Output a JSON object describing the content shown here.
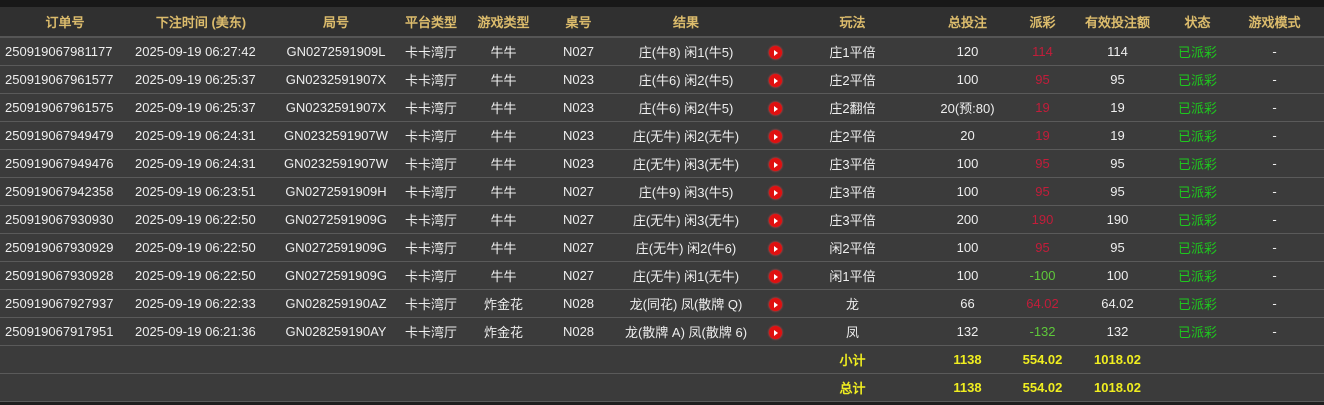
{
  "headers": [
    "订单号",
    "下注时间 (美东)",
    "局号",
    "平台类型",
    "游戏类型",
    "桌号",
    "结果",
    "",
    "玩法",
    "总投注",
    "派彩",
    "有效投注额",
    "状态",
    "游戏模式"
  ],
  "rows": [
    [
      "250919067981177",
      "2025-09-19 06:27:42",
      "GN0272591909L",
      "卡卡湾厅",
      "牛牛",
      "N027",
      "庄(牛8) 闲1(牛5)",
      "庄1平倍",
      "120",
      "114",
      "114",
      "已派彩",
      "-"
    ],
    [
      "250919067961577",
      "2025-09-19 06:25:37",
      "GN0232591907X",
      "卡卡湾厅",
      "牛牛",
      "N023",
      "庄(牛6) 闲2(牛5)",
      "庄2平倍",
      "100",
      "95",
      "95",
      "已派彩",
      "-"
    ],
    [
      "250919067961575",
      "2025-09-19 06:25:37",
      "GN0232591907X",
      "卡卡湾厅",
      "牛牛",
      "N023",
      "庄(牛6) 闲2(牛5)",
      "庄2翻倍",
      "20(预:80)",
      "19",
      "19",
      "已派彩",
      "-"
    ],
    [
      "250919067949479",
      "2025-09-19 06:24:31",
      "GN0232591907W",
      "卡卡湾厅",
      "牛牛",
      "N023",
      "庄(无牛) 闲2(无牛)",
      "庄2平倍",
      "20",
      "19",
      "19",
      "已派彩",
      "-"
    ],
    [
      "250919067949476",
      "2025-09-19 06:24:31",
      "GN0232591907W",
      "卡卡湾厅",
      "牛牛",
      "N023",
      "庄(无牛) 闲3(无牛)",
      "庄3平倍",
      "100",
      "95",
      "95",
      "已派彩",
      "-"
    ],
    [
      "250919067942358",
      "2025-09-19 06:23:51",
      "GN0272591909H",
      "卡卡湾厅",
      "牛牛",
      "N027",
      "庄(牛9) 闲3(牛5)",
      "庄3平倍",
      "100",
      "95",
      "95",
      "已派彩",
      "-"
    ],
    [
      "250919067930930",
      "2025-09-19 06:22:50",
      "GN0272591909G",
      "卡卡湾厅",
      "牛牛",
      "N027",
      "庄(无牛) 闲3(无牛)",
      "庄3平倍",
      "200",
      "190",
      "190",
      "已派彩",
      "-"
    ],
    [
      "250919067930929",
      "2025-09-19 06:22:50",
      "GN0272591909G",
      "卡卡湾厅",
      "牛牛",
      "N027",
      "庄(无牛) 闲2(牛6)",
      "闲2平倍",
      "100",
      "95",
      "95",
      "已派彩",
      "-"
    ],
    [
      "250919067930928",
      "2025-09-19 06:22:50",
      "GN0272591909G",
      "卡卡湾厅",
      "牛牛",
      "N027",
      "庄(无牛) 闲1(无牛)",
      "闲1平倍",
      "100",
      "-100",
      "100",
      "已派彩",
      "-"
    ],
    [
      "250919067927937",
      "2025-09-19 06:22:33",
      "GN028259190AZ",
      "卡卡湾厅",
      "炸金花",
      "N028",
      "龙(同花) 凤(散牌 Q)",
      "龙",
      "66",
      "64.02",
      "64.02",
      "已派彩",
      "-"
    ],
    [
      "250919067917951",
      "2025-09-19 06:21:36",
      "GN028259190AY",
      "卡卡湾厅",
      "炸金花",
      "N028",
      "龙(散牌 A) 凤(散牌 6)",
      "凤",
      "132",
      "-132",
      "132",
      "已派彩",
      "-"
    ]
  ],
  "subtotal": {
    "label": "小计",
    "total_bet": "1138",
    "payout": "554.02",
    "valid_bet": "1018.02"
  },
  "total": {
    "label": "总计",
    "total_bet": "1138",
    "payout": "554.02",
    "valid_bet": "1018.02"
  },
  "icons": {
    "replay": "play-circle-icon"
  },
  "colors": {
    "header_text": "#dcbc6c",
    "payout_positive": "#c21d3a",
    "payout_negative": "#5ec83a",
    "status": "#1ec81e",
    "totals": "#f0ee20"
  }
}
